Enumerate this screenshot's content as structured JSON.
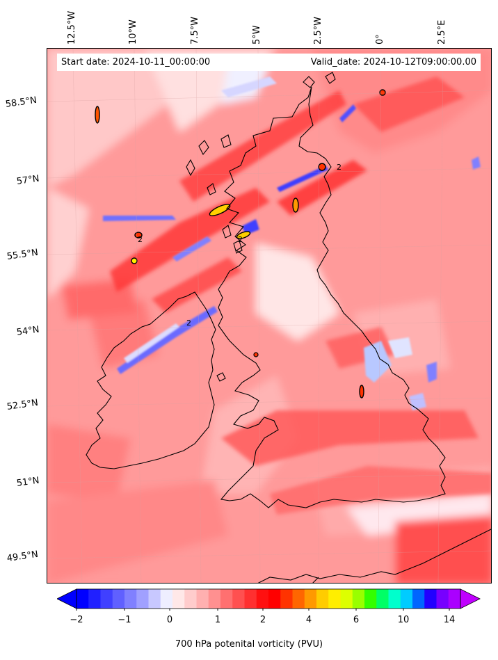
{
  "map": {
    "start_date": "Start date: 2024-10-11_00:00:00",
    "valid_date": "Valid_date: 2024-10-12T09:00:00.00",
    "longitude_labels": [
      {
        "text": "12.5°W"
      },
      {
        "text": "10°W"
      },
      {
        "text": "7.5°W"
      },
      {
        "text": "5°W"
      },
      {
        "text": "2.5°W"
      },
      {
        "text": "0°"
      },
      {
        "text": "2.5°E"
      }
    ],
    "latitude_labels": [
      {
        "text": "58.5°N"
      },
      {
        "text": "57°N"
      },
      {
        "text": "55.5°N"
      },
      {
        "text": "54°N"
      },
      {
        "text": "52.5°N"
      },
      {
        "text": "51°N"
      },
      {
        "text": "49.5°N"
      }
    ],
    "contour_label": "2",
    "colors": {
      "land_outline": "#000000",
      "background_pv": "#ff9a9a",
      "high_pv": "#ff1a1a",
      "low_pv": "#4a4aff",
      "very_high_pv": "#ffd000"
    }
  },
  "colorbar": {
    "title": "700 hPa potenital vorticity (PVU)",
    "tick_labels": [
      "−2",
      "−1",
      "0",
      "1",
      "2",
      "4",
      "6",
      "10",
      "14"
    ],
    "colors": [
      "#0000ff",
      "#2020ff",
      "#4040ff",
      "#6060ff",
      "#8080ff",
      "#a0a0ff",
      "#c8c8ff",
      "#eeeeff",
      "#ffe8e8",
      "#ffcccc",
      "#ffb0b0",
      "#ff9090",
      "#ff7070",
      "#ff5050",
      "#ff3030",
      "#ff1010",
      "#ff0000",
      "#ff3300",
      "#ff6600",
      "#ff9900",
      "#ffcc00",
      "#ffee00",
      "#ddff00",
      "#99ff00",
      "#33ff00",
      "#00ff66",
      "#00ffcc",
      "#00ccff",
      "#0066ff",
      "#2200ff",
      "#7700ff",
      "#aa00ff"
    ],
    "extend_low_color": "#0000ff",
    "extend_high_color": "#c000ff"
  }
}
